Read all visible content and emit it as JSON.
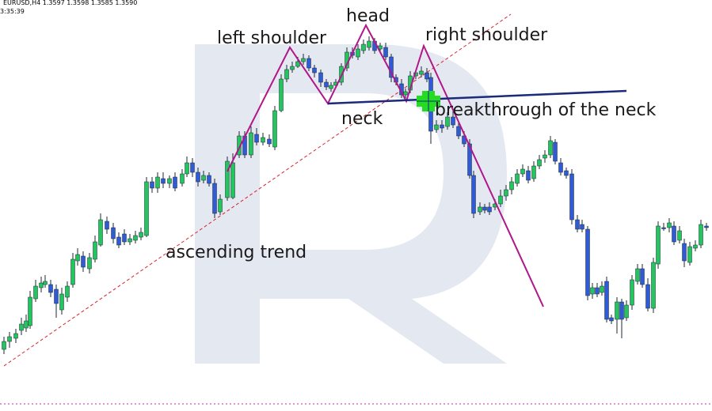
{
  "header": {
    "symbol_line": "EURUSD,H4  1.3597 1.3598 1.3585 1.3590",
    "time_line": "3:35:39"
  },
  "colors": {
    "background": "#ffffff",
    "bull_candle": "#22c55e",
    "bear_candle": "#2f5bd6",
    "wick": "#1f2a33",
    "pattern_line": "#b0178a",
    "neckline": "#1b2a7a",
    "trendline": "#d9232e",
    "breakout_marker": "#22dd22",
    "watermark": "#e4e8f1",
    "bottom_border": "#c22fa2"
  },
  "chart_data": {
    "type": "candlestick",
    "title": "",
    "xlabel": "",
    "ylabel": "",
    "grid": false,
    "annotations": [
      {
        "id": "left-shoulder",
        "text": "left shoulder"
      },
      {
        "id": "head",
        "text": "head"
      },
      {
        "id": "right-shoulder",
        "text": "right shoulder"
      },
      {
        "id": "neck",
        "text": "neck"
      },
      {
        "id": "breakthrough",
        "text": "breakthrough of the neck"
      },
      {
        "id": "ascending-trend",
        "text": "ascending trend"
      }
    ],
    "candles": [
      [
        5,
        442,
        432,
        426,
        448
      ],
      [
        12,
        432,
        426,
        420,
        440
      ],
      [
        20,
        428,
        422,
        416,
        434
      ],
      [
        27,
        418,
        410,
        402,
        424
      ],
      [
        33,
        415,
        406,
        398,
        420
      ],
      [
        38,
        412,
        376,
        368,
        416
      ],
      [
        45,
        378,
        362,
        354,
        382
      ],
      [
        52,
        364,
        358,
        350,
        370
      ],
      [
        57,
        360,
        356,
        348,
        364
      ],
      [
        64,
        360,
        370,
        354,
        376
      ],
      [
        71,
        366,
        384,
        360,
        402
      ],
      [
        78,
        392,
        372,
        364,
        398
      ],
      [
        85,
        376,
        362,
        356,
        382
      ],
      [
        92,
        360,
        328,
        320,
        364
      ],
      [
        98,
        330,
        322,
        314,
        336
      ],
      [
        105,
        324,
        338,
        318,
        344
      ],
      [
        113,
        340,
        326,
        320,
        346
      ],
      [
        120,
        328,
        306,
        298,
        332
      ],
      [
        127,
        310,
        278,
        270,
        312
      ],
      [
        135,
        280,
        290,
        274,
        296
      ],
      [
        143,
        288,
        302,
        282,
        308
      ],
      [
        150,
        300,
        310,
        294,
        314
      ],
      [
        157,
        296,
        306,
        290,
        310
      ],
      [
        164,
        306,
        302,
        296,
        310
      ],
      [
        171,
        304,
        298,
        292,
        308
      ],
      [
        178,
        300,
        294,
        288,
        304
      ],
      [
        185,
        298,
        230,
        224,
        300
      ],
      [
        192,
        230,
        238,
        224,
        244
      ],
      [
        199,
        238,
        224,
        218,
        244
      ],
      [
        206,
        226,
        232,
        218,
        238
      ],
      [
        214,
        232,
        226,
        222,
        238
      ],
      [
        221,
        224,
        238,
        218,
        242
      ],
      [
        230,
        232,
        220,
        214,
        236
      ],
      [
        236,
        220,
        206,
        198,
        224
      ],
      [
        243,
        206,
        218,
        200,
        224
      ],
      [
        250,
        218,
        230,
        212,
        236
      ],
      [
        257,
        228,
        222,
        216,
        232
      ],
      [
        264,
        222,
        232,
        218,
        236
      ],
      [
        271,
        232,
        270,
        226,
        276
      ],
      [
        278,
        268,
        252,
        246,
        272
      ],
      [
        287,
        250,
        204,
        198,
        254
      ],
      [
        294,
        250,
        206,
        194,
        252
      ],
      [
        302,
        196,
        172,
        166,
        200
      ],
      [
        309,
        172,
        196,
        166,
        200
      ],
      [
        317,
        196,
        168,
        160,
        200
      ],
      [
        324,
        170,
        180,
        162,
        184
      ],
      [
        332,
        180,
        174,
        168,
        184
      ],
      [
        340,
        176,
        182,
        170,
        186
      ],
      [
        347,
        186,
        140,
        134,
        190
      ],
      [
        355,
        140,
        100,
        94,
        142
      ],
      [
        362,
        100,
        88,
        82,
        104
      ],
      [
        369,
        88,
        84,
        78,
        92
      ],
      [
        376,
        84,
        78,
        72,
        86
      ],
      [
        383,
        78,
        74,
        68,
        82
      ],
      [
        390,
        74,
        86,
        70,
        90
      ],
      [
        397,
        86,
        92,
        82,
        98
      ],
      [
        405,
        92,
        104,
        88,
        110
      ],
      [
        412,
        104,
        110,
        100,
        114
      ],
      [
        418,
        112,
        108,
        104,
        116
      ],
      [
        424,
        108,
        104,
        100,
        112
      ],
      [
        431,
        104,
        84,
        80,
        108
      ],
      [
        438,
        86,
        66,
        60,
        90
      ],
      [
        445,
        66,
        70,
        60,
        74
      ],
      [
        452,
        72,
        62,
        56,
        76
      ],
      [
        459,
        64,
        56,
        50,
        68
      ],
      [
        466,
        60,
        52,
        46,
        64
      ],
      [
        473,
        52,
        64,
        48,
        68
      ],
      [
        480,
        62,
        58,
        54,
        66
      ],
      [
        487,
        60,
        72,
        54,
        76
      ],
      [
        494,
        72,
        98,
        68,
        104
      ],
      [
        500,
        98,
        104,
        94,
        108
      ],
      [
        507,
        106,
        120,
        100,
        124
      ],
      [
        512,
        120,
        116,
        112,
        124
      ],
      [
        518,
        114,
        96,
        90,
        118
      ],
      [
        525,
        96,
        92,
        88,
        100
      ],
      [
        532,
        94,
        90,
        84,
        98
      ],
      [
        539,
        92,
        100,
        86,
        104
      ],
      [
        544,
        98,
        166,
        92,
        182
      ],
      [
        551,
        164,
        158,
        152,
        168
      ],
      [
        558,
        158,
        162,
        152,
        168
      ],
      [
        565,
        160,
        148,
        142,
        164
      ],
      [
        572,
        148,
        158,
        140,
        162
      ],
      [
        579,
        160,
        172,
        154,
        176
      ],
      [
        586,
        172,
        182,
        166,
        186
      ],
      [
        593,
        182,
        222,
        176,
        226
      ],
      [
        598,
        222,
        270,
        216,
        276
      ],
      [
        606,
        268,
        262,
        256,
        272
      ],
      [
        612,
        262,
        266,
        258,
        270
      ],
      [
        618,
        262,
        268,
        256,
        272
      ],
      [
        625,
        262,
        258,
        252,
        266
      ],
      [
        632,
        258,
        248,
        240,
        262
      ],
      [
        639,
        248,
        240,
        234,
        254
      ],
      [
        646,
        240,
        230,
        224,
        246
      ],
      [
        653,
        232,
        220,
        214,
        236
      ],
      [
        660,
        220,
        214,
        208,
        224
      ],
      [
        667,
        216,
        228,
        210,
        232
      ],
      [
        674,
        226,
        210,
        204,
        230
      ],
      [
        681,
        210,
        202,
        196,
        214
      ],
      [
        688,
        200,
        196,
        190,
        206
      ],
      [
        695,
        196,
        178,
        172,
        200
      ],
      [
        701,
        180,
        204,
        176,
        208
      ],
      [
        708,
        206,
        218,
        200,
        222
      ],
      [
        715,
        216,
        222,
        212,
        226
      ],
      [
        722,
        220,
        278,
        214,
        284
      ],
      [
        729,
        278,
        290,
        272,
        294
      ],
      [
        735,
        284,
        290,
        278,
        294
      ],
      [
        742,
        290,
        374,
        286,
        380
      ],
      [
        748,
        372,
        364,
        358,
        378
      ],
      [
        754,
        364,
        372,
        358,
        376
      ],
      [
        760,
        370,
        362,
        356,
        374
      ],
      [
        766,
        356,
        404,
        350,
        408
      ],
      [
        772,
        402,
        406,
        398,
        410
      ],
      [
        779,
        404,
        382,
        376,
        422
      ],
      [
        785,
        382,
        404,
        378,
        428
      ],
      [
        791,
        402,
        386,
        380,
        406
      ],
      [
        798,
        386,
        354,
        348,
        392
      ],
      [
        805,
        356,
        340,
        334,
        360
      ],
      [
        811,
        340,
        360,
        334,
        364
      ],
      [
        818,
        360,
        390,
        352,
        394
      ],
      [
        825,
        390,
        332,
        326,
        396
      ],
      [
        831,
        334,
        286,
        280,
        340
      ],
      [
        838,
        288,
        288,
        282,
        292
      ],
      [
        845,
        288,
        282,
        276,
        294
      ],
      [
        851,
        286,
        306,
        280,
        310
      ],
      [
        858,
        304,
        292,
        286,
        308
      ],
      [
        864,
        308,
        330,
        302,
        338
      ],
      [
        871,
        332,
        312,
        306,
        336
      ],
      [
        878,
        314,
        310,
        304,
        318
      ],
      [
        885,
        310,
        284,
        278,
        314
      ],
      [
        892,
        286,
        288,
        282,
        292
      ]
    ]
  }
}
